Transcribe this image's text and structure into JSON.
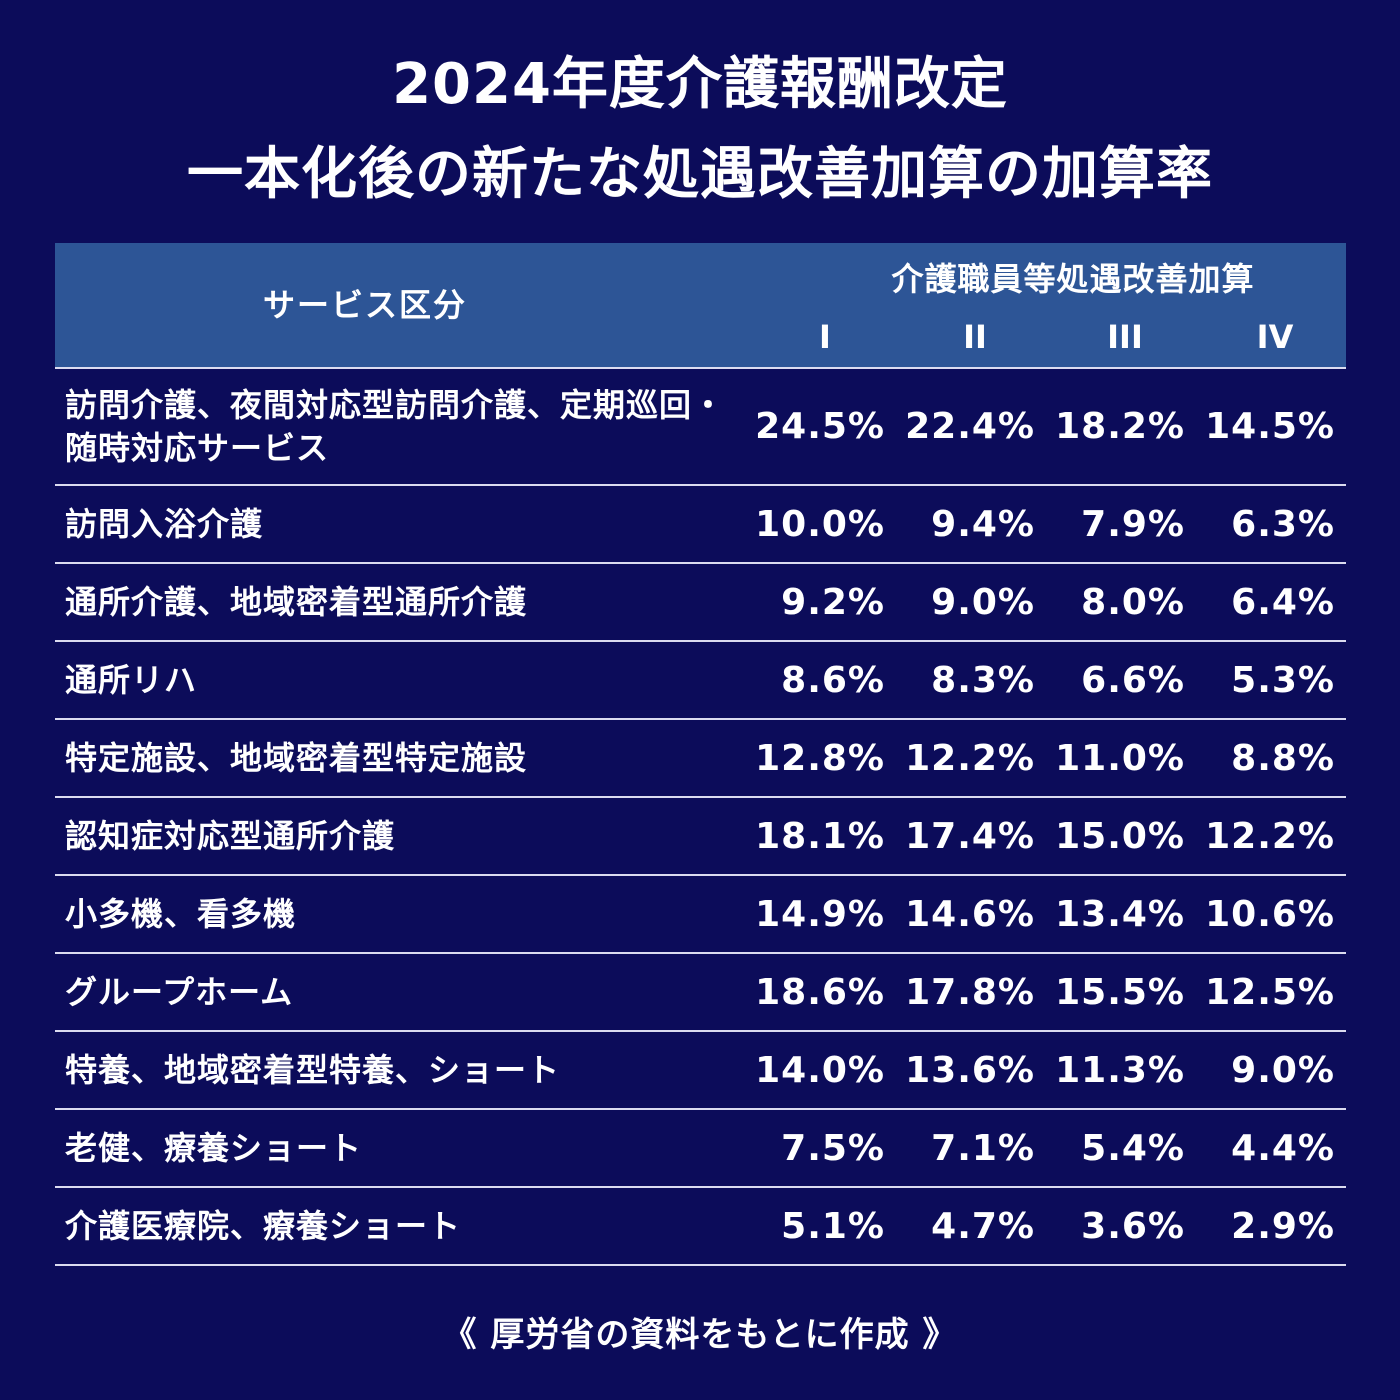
{
  "title": {
    "line1": "2024年度介護報酬改定",
    "line2": "一本化後の新たな処遇改善加算の加算率"
  },
  "table": {
    "header": {
      "service": "サービス区分",
      "group": "介護職員等処遇改善加算",
      "levels": [
        "I",
        "II",
        "III",
        "IV"
      ]
    },
    "rows": [
      {
        "service": "訪問介護、夜間対応型訪問介護、定期巡回・随時対応サービス",
        "values": [
          "24.5%",
          "22.4%",
          "18.2%",
          "14.5%"
        ]
      },
      {
        "service": "訪問入浴介護",
        "values": [
          "10.0%",
          "9.4%",
          "7.9%",
          "6.3%"
        ]
      },
      {
        "service": "通所介護、地域密着型通所介護",
        "values": [
          "9.2%",
          "9.0%",
          "8.0%",
          "6.4%"
        ]
      },
      {
        "service": "通所リハ",
        "values": [
          "8.6%",
          "8.3%",
          "6.6%",
          "5.3%"
        ]
      },
      {
        "service": "特定施設、地域密着型特定施設",
        "values": [
          "12.8%",
          "12.2%",
          "11.0%",
          "8.8%"
        ]
      },
      {
        "service": "認知症対応型通所介護",
        "values": [
          "18.1%",
          "17.4%",
          "15.0%",
          "12.2%"
        ]
      },
      {
        "service": "小多機、看多機",
        "values": [
          "14.9%",
          "14.6%",
          "13.4%",
          "10.6%"
        ]
      },
      {
        "service": "グループホーム",
        "values": [
          "18.6%",
          "17.8%",
          "15.5%",
          "12.5%"
        ]
      },
      {
        "service": "特養、地域密着型特養、ショート",
        "values": [
          "14.0%",
          "13.6%",
          "11.3%",
          "9.0%"
        ]
      },
      {
        "service": "老健、療養ショート",
        "values": [
          "7.5%",
          "7.1%",
          "5.4%",
          "4.4%"
        ]
      },
      {
        "service": "介護医療院、療養ショート",
        "values": [
          "5.1%",
          "4.7%",
          "3.6%",
          "2.9%"
        ]
      }
    ]
  },
  "footer": "《 厚労省の資料をもとに作成 》",
  "colors": {
    "background": "#0c0c5a",
    "header_background": "#2d5596",
    "text": "#ffffff",
    "row_border": "#dcdcf0"
  }
}
